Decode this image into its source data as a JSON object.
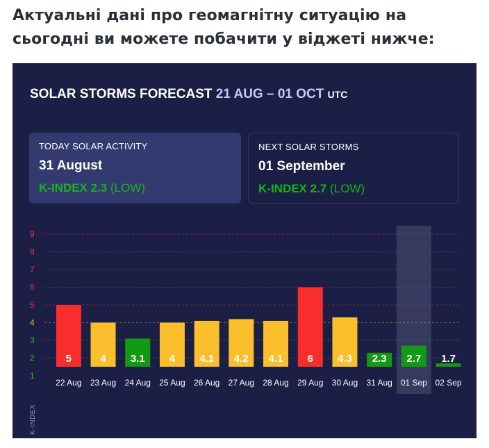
{
  "intro_text": "Актуальні дані про геомагнітну ситуацію на сьогодні ви можете побачити у віджеті нижче:",
  "widget": {
    "title_main": "SOLAR STORMS FORECAST",
    "title_range": "21 AUG – 01 OCT",
    "title_tz": "UTC",
    "today_card": {
      "caption": "TODAY SOLAR ACTIVITY",
      "date": "31 August",
      "kindex_label": "K-INDEX 2.3",
      "level": "(LOW)"
    },
    "next_card": {
      "caption": "NEXT SOLAR STORMS",
      "date": "01 September",
      "kindex_label": "K-INDEX 2.7",
      "level": "(LOW)"
    }
  },
  "chart_data": {
    "type": "bar",
    "ylabel": "K-INDEX",
    "yticks": [
      1,
      2,
      3,
      4,
      5,
      6,
      7,
      8,
      9
    ],
    "ytick_colors": [
      "#22c322",
      "#22c322",
      "#22c322",
      "#f3b62b",
      "#e8343a",
      "#e8343a",
      "#e8343a",
      "#e8343a",
      "#e8343a"
    ],
    "ylim": [
      1,
      9
    ],
    "categories": [
      "22 Aug",
      "23 Aug",
      "24 Aug",
      "25 Aug",
      "26 Aug",
      "27 Aug",
      "28 Aug",
      "29 Aug",
      "30 Aug",
      "31 Aug",
      "01 Sep",
      "02 Sep"
    ],
    "values": [
      5,
      4,
      3.1,
      4,
      4.1,
      4.2,
      4.1,
      6,
      4.3,
      2.3,
      2.7,
      1.7
    ],
    "labels": [
      "5",
      "4",
      "3.1",
      "4",
      "4.1",
      "4.2",
      "4.1",
      "6",
      "4.3",
      "2.3",
      "2.7",
      "1.7"
    ],
    "highlight_category": "01 Sep",
    "grid": "horizontal dashed",
    "colors": {
      "low": "#129a12",
      "moderate": "#fbbe2c",
      "high": "#fa2d2d"
    }
  }
}
